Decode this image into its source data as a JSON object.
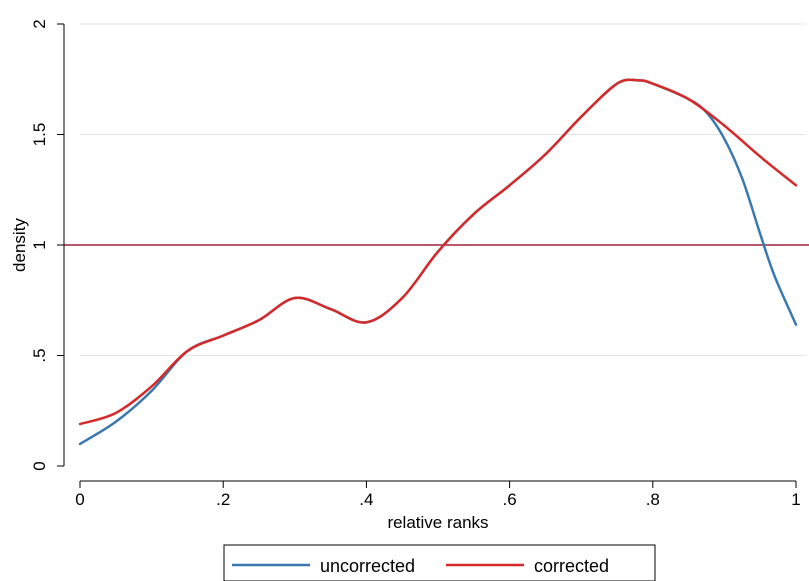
{
  "chart_data": {
    "type": "line",
    "xlabel": "relative ranks",
    "ylabel": "density",
    "xlim": [
      0,
      1
    ],
    "ylim": [
      0,
      2
    ],
    "xticks": [
      {
        "value": 0,
        "label": "0"
      },
      {
        "value": 0.2,
        "label": ".2"
      },
      {
        "value": 0.4,
        "label": ".4"
      },
      {
        "value": 0.6,
        "label": ".6"
      },
      {
        "value": 0.8,
        "label": ".8"
      },
      {
        "value": 1,
        "label": "1"
      }
    ],
    "yticks": [
      {
        "value": 0,
        "label": "0"
      },
      {
        "value": 0.5,
        "label": ".5"
      },
      {
        "value": 1,
        "label": "1"
      },
      {
        "value": 1.5,
        "label": "1.5"
      },
      {
        "value": 2,
        "label": "2"
      }
    ],
    "grid": "horizontal",
    "legend": "bottom",
    "reference_line": {
      "y": 1,
      "color": "#a3203b"
    },
    "series": [
      {
        "name": "uncorrected",
        "color": "#3a78b0",
        "x": [
          0,
          0.05,
          0.1,
          0.15,
          0.2,
          0.25,
          0.3,
          0.35,
          0.4,
          0.45,
          0.5,
          0.55,
          0.6,
          0.65,
          0.7,
          0.75,
          0.78,
          0.8,
          0.85,
          0.875,
          0.9,
          0.925,
          0.95,
          0.97,
          1.0
        ],
        "y": [
          0.1,
          0.2,
          0.34,
          0.52,
          0.59,
          0.66,
          0.76,
          0.71,
          0.65,
          0.76,
          0.97,
          1.14,
          1.27,
          1.41,
          1.58,
          1.73,
          1.745,
          1.73,
          1.66,
          1.6,
          1.48,
          1.3,
          1.05,
          0.86,
          0.64
        ]
      },
      {
        "name": "corrected",
        "color": "#d42a2a",
        "x": [
          0,
          0.05,
          0.1,
          0.15,
          0.2,
          0.25,
          0.3,
          0.35,
          0.4,
          0.45,
          0.5,
          0.55,
          0.6,
          0.65,
          0.7,
          0.75,
          0.78,
          0.8,
          0.85,
          0.9,
          0.95,
          1.0
        ],
        "y": [
          0.19,
          0.24,
          0.36,
          0.52,
          0.59,
          0.66,
          0.76,
          0.71,
          0.65,
          0.76,
          0.97,
          1.14,
          1.27,
          1.41,
          1.58,
          1.73,
          1.745,
          1.73,
          1.66,
          1.54,
          1.4,
          1.27
        ]
      }
    ]
  }
}
